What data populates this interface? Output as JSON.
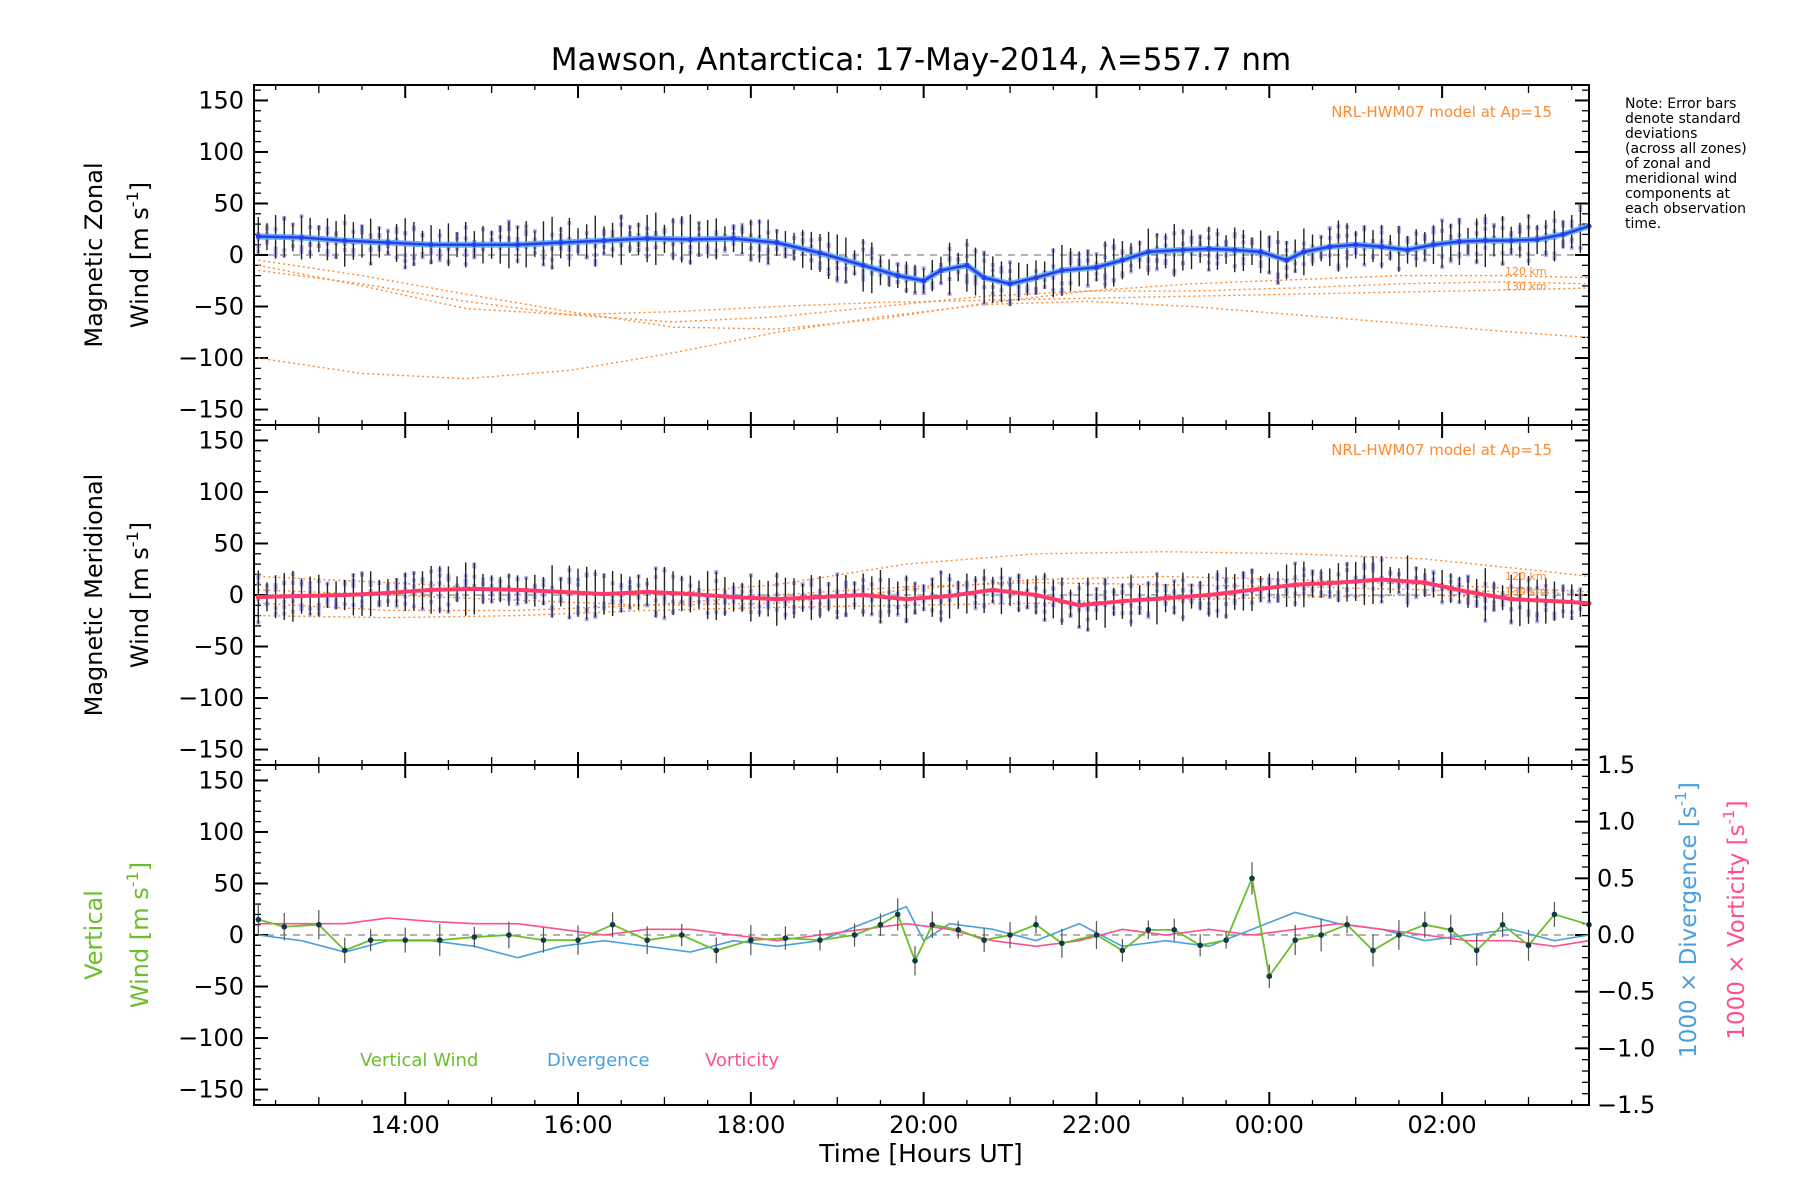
{
  "title": "Mawson, Antarctica: 17-May-2014, λ=557.7 nm",
  "xlabel": "Time [Hours UT]",
  "x_tick_labels": [
    "14:00",
    "16:00",
    "18:00",
    "20:00",
    "22:00",
    "00:00",
    "02:00"
  ],
  "note": "Note: Error bars\ndenote standard\ndeviations\n(across all zones)\nof zonal and\nmeridional wind\ncomponents at\neach observation\ntime.",
  "colors": {
    "zonal": "#2b3cf0",
    "zonal_smooth": "#5aaaf0",
    "meridional": "#ff3a6a",
    "vertical": "#6bbf2a",
    "divergence": "#4aa0dd",
    "vorticity": "#ff4f8c",
    "model": "#ff8a30",
    "zone_points": "#a9a4ee",
    "error_bar": "#222222"
  },
  "chart_data": [
    {
      "type": "line",
      "panel": "zonal",
      "ylabel_line1": "Magnetic Zonal",
      "ylabel_line2": "Wind [m s",
      "ylabel_sup": "-1",
      "ylabel_close": "]",
      "y_tick_labels": [
        "150",
        "100",
        "50",
        "0",
        "−50",
        "−100",
        "−150"
      ],
      "ylim": [
        -165,
        165
      ],
      "xlim": [
        12.25,
        27.7
      ],
      "model_label": "NRL-HWM07 model at Ap=15",
      "model_alt_labels": [
        "120 km",
        "130 km"
      ],
      "series": [
        {
          "name": "",
          "x": [
            12.3,
            12.8,
            13.3,
            13.8,
            14.3,
            14.8,
            15.3,
            15.8,
            16.3,
            16.8,
            17.3,
            17.8,
            18.3,
            18.8,
            19.3,
            19.7,
            20.0,
            20.2,
            20.5,
            20.7,
            21.0,
            21.3,
            21.6,
            22.0,
            22.3,
            22.6,
            23.0,
            23.3,
            23.6,
            23.9,
            24.2,
            24.4,
            24.7,
            25.0,
            25.3,
            25.6,
            25.9,
            26.2,
            26.5,
            26.8,
            27.1,
            27.4,
            27.7
          ],
          "y": [
            18,
            17,
            14,
            12,
            10,
            10,
            10,
            12,
            14,
            16,
            15,
            16,
            12,
            2,
            -10,
            -20,
            -25,
            -15,
            -10,
            -22,
            -28,
            -22,
            -15,
            -12,
            -5,
            3,
            5,
            6,
            5,
            3,
            -5,
            3,
            8,
            10,
            8,
            5,
            10,
            13,
            14,
            14,
            15,
            20,
            28
          ]
        }
      ],
      "model_curves": [
        {
          "x": [
            12.3,
            13.5,
            14.7,
            15.9,
            17.1,
            18.3,
            19.5,
            20.7,
            21.9,
            23.1,
            24.3,
            25.5,
            26.7,
            27.7
          ],
          "y": [
            -5,
            -20,
            -38,
            -55,
            -70,
            -72,
            -62,
            -47,
            -35,
            -28,
            -24,
            -20,
            -20,
            -22
          ]
        },
        {
          "x": [
            12.3,
            13.5,
            14.7,
            15.9,
            17.1,
            18.3,
            19.5,
            20.7,
            21.9,
            23.1,
            24.3,
            25.5,
            26.7,
            27.7
          ],
          "y": [
            -15,
            -28,
            -45,
            -58,
            -65,
            -60,
            -50,
            -40,
            -35,
            -35,
            -32,
            -28,
            -26,
            -28
          ]
        },
        {
          "x": [
            12.3,
            13.5,
            14.7,
            15.9,
            17.1,
            18.3,
            19.5,
            20.7,
            21.9,
            23.1,
            24.3,
            25.5,
            26.7,
            27.7
          ],
          "y": [
            -100,
            -115,
            -120,
            -112,
            -95,
            -75,
            -60,
            -48,
            -45,
            -50,
            -58,
            -66,
            -74,
            -80
          ]
        },
        {
          "x": [
            12.3,
            13.5,
            14.7,
            15.9,
            17.1,
            18.3,
            19.5,
            20.7,
            21.9,
            23.1,
            24.3,
            25.5,
            26.7,
            27.7
          ],
          "y": [
            -10,
            -30,
            -52,
            -58,
            -55,
            -50,
            -46,
            -44,
            -42,
            -40,
            -38,
            -36,
            -34,
            -32
          ]
        }
      ]
    },
    {
      "type": "line",
      "panel": "meridional",
      "ylabel_line1": "Magnetic Meridional",
      "ylabel_line2": "Wind [m s",
      "ylabel_sup": "-1",
      "ylabel_close": "]",
      "y_tick_labels": [
        "150",
        "100",
        "50",
        "0",
        "−50",
        "−100",
        "−150"
      ],
      "ylim": [
        -165,
        165
      ],
      "xlim": [
        12.25,
        27.7
      ],
      "model_label": "NRL-HWM07 model at Ap=15",
      "model_alt_labels": [
        "120 km",
        "130 km"
      ],
      "series": [
        {
          "name": "",
          "x": [
            12.3,
            12.8,
            13.3,
            13.8,
            14.3,
            14.8,
            15.3,
            15.8,
            16.3,
            16.8,
            17.3,
            17.8,
            18.3,
            18.8,
            19.3,
            19.8,
            20.3,
            20.8,
            21.3,
            21.8,
            22.3,
            22.8,
            23.3,
            23.8,
            24.3,
            24.8,
            25.3,
            25.8,
            26.3,
            26.8,
            27.3,
            27.7
          ],
          "y": [
            -2,
            -1,
            0,
            2,
            5,
            6,
            5,
            3,
            1,
            3,
            1,
            -2,
            -4,
            -2,
            0,
            -4,
            -1,
            5,
            0,
            -10,
            -6,
            -3,
            0,
            5,
            10,
            12,
            15,
            12,
            3,
            -4,
            -6,
            -8
          ]
        }
      ],
      "model_curves": [
        {
          "x": [
            12.3,
            13.8,
            15.3,
            16.8,
            18.3,
            19.8,
            21.3,
            22.8,
            24.3,
            25.8,
            27.3,
            27.7
          ],
          "y": [
            18,
            12,
            5,
            0,
            10,
            30,
            40,
            42,
            40,
            35,
            22,
            18
          ]
        },
        {
          "x": [
            12.3,
            13.8,
            15.3,
            16.8,
            18.3,
            19.8,
            21.3,
            22.8,
            24.3,
            25.8,
            27.3,
            27.7
          ],
          "y": [
            5,
            0,
            -5,
            -10,
            -8,
            5,
            15,
            18,
            15,
            10,
            5,
            3
          ]
        },
        {
          "x": [
            12.3,
            13.8,
            15.3,
            16.8,
            18.3,
            19.8,
            21.3,
            22.8,
            24.3,
            25.8,
            27.3,
            27.7
          ],
          "y": [
            -8,
            -15,
            -15,
            -10,
            0,
            8,
            12,
            10,
            8,
            5,
            2,
            0
          ]
        },
        {
          "x": [
            12.3,
            13.8,
            15.3,
            16.8,
            18.3,
            19.8,
            21.3,
            22.8,
            24.3,
            25.8,
            27.3,
            27.7
          ],
          "y": [
            -20,
            -22,
            -20,
            -15,
            -12,
            -10,
            -8,
            -5,
            -2,
            0,
            -5,
            -8
          ]
        }
      ]
    },
    {
      "type": "line",
      "panel": "vertical",
      "ylabel_line1": "Vertical",
      "ylabel_line2": "Wind [m s",
      "ylabel_sup": "-1",
      "ylabel_close": "]",
      "y_tick_labels": [
        "150",
        "100",
        "50",
        "0",
        "−50",
        "−100",
        "−150"
      ],
      "ylim": [
        -165,
        165
      ],
      "xlim": [
        12.25,
        27.7
      ],
      "y2_tick_labels": [
        "1.5",
        "1.0",
        "0.5",
        "0.0",
        "−0.5",
        "−1.0",
        "−1.5"
      ],
      "y2lim": [
        -1.5,
        1.5
      ],
      "y2label_div": "1000 × Divergence [s",
      "y2label_vor": "1000 × Vorticity [s",
      "y2_sup": "-1",
      "y2_close": "]",
      "legend": [
        "Vertical Wind",
        "Divergence",
        "Vorticity"
      ],
      "series": [
        {
          "name": "Vertical Wind",
          "x": [
            12.3,
            12.6,
            13.0,
            13.3,
            13.6,
            14.0,
            14.4,
            14.8,
            15.2,
            15.6,
            16.0,
            16.4,
            16.8,
            17.2,
            17.6,
            18.0,
            18.4,
            18.8,
            19.2,
            19.5,
            19.7,
            19.9,
            20.1,
            20.4,
            20.7,
            21.0,
            21.3,
            21.6,
            22.0,
            22.3,
            22.6,
            22.9,
            23.2,
            23.5,
            23.8,
            24.0,
            24.3,
            24.6,
            24.9,
            25.2,
            25.5,
            25.8,
            26.1,
            26.4,
            26.7,
            27.0,
            27.3,
            27.7
          ],
          "y": [
            15,
            8,
            10,
            -15,
            -5,
            -5,
            -5,
            -2,
            0,
            -5,
            -5,
            10,
            -5,
            0,
            -15,
            -5,
            -3,
            -5,
            0,
            10,
            20,
            -25,
            10,
            5,
            -5,
            0,
            10,
            -8,
            0,
            -15,
            5,
            5,
            -10,
            -5,
            55,
            -40,
            -5,
            0,
            10,
            -15,
            0,
            10,
            5,
            -15,
            10,
            -10,
            20,
            10
          ]
        },
        {
          "name": "Divergence",
          "x": [
            12.3,
            12.8,
            13.3,
            13.8,
            14.3,
            14.8,
            15.3,
            15.8,
            16.3,
            16.8,
            17.3,
            17.8,
            18.3,
            18.8,
            19.3,
            19.8,
            20.0,
            20.3,
            20.8,
            21.3,
            21.8,
            22.3,
            22.8,
            23.3,
            23.8,
            24.3,
            24.8,
            25.3,
            25.8,
            26.3,
            26.8,
            27.3,
            27.7
          ],
          "y": [
            0.0,
            -0.05,
            -0.15,
            -0.05,
            -0.05,
            -0.1,
            -0.2,
            -0.1,
            -0.05,
            -0.1,
            -0.15,
            -0.05,
            -0.1,
            -0.05,
            0.1,
            0.25,
            -0.05,
            0.1,
            0.05,
            -0.05,
            0.1,
            -0.1,
            -0.05,
            -0.1,
            0.05,
            0.2,
            0.1,
            0.05,
            -0.05,
            0.0,
            0.05,
            -0.05,
            0.0
          ]
        },
        {
          "name": "Vorticity",
          "x": [
            12.3,
            12.8,
            13.3,
            13.8,
            14.3,
            14.8,
            15.3,
            15.8,
            16.3,
            16.8,
            17.3,
            17.8,
            18.3,
            18.8,
            19.3,
            19.8,
            20.3,
            20.8,
            21.3,
            21.8,
            22.3,
            22.8,
            23.3,
            23.8,
            24.3,
            24.8,
            25.3,
            25.8,
            26.3,
            26.8,
            27.3,
            27.7
          ],
          "y": [
            0.1,
            0.1,
            0.1,
            0.15,
            0.12,
            0.1,
            0.1,
            0.05,
            0.0,
            0.05,
            0.05,
            0.0,
            -0.05,
            0.0,
            0.05,
            0.1,
            0.05,
            -0.05,
            -0.1,
            -0.05,
            0.05,
            0.0,
            0.05,
            0.0,
            0.05,
            0.1,
            0.05,
            0.0,
            -0.05,
            -0.05,
            -0.1,
            -0.05
          ]
        }
      ]
    }
  ]
}
